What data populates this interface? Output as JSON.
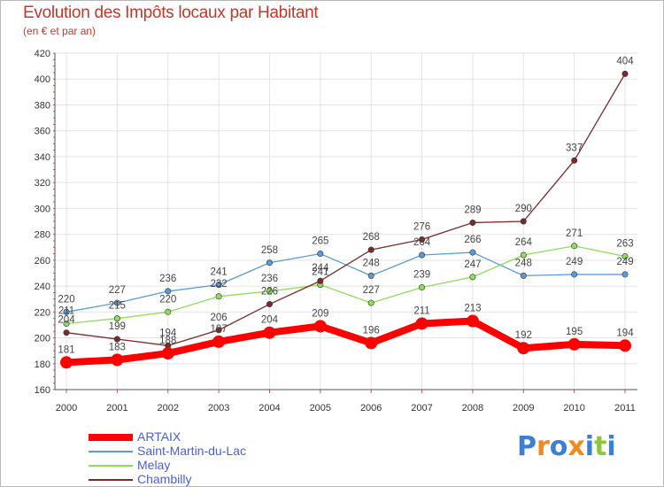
{
  "chart_data": {
    "type": "line",
    "title": "Evolution des Impôts locaux par Habitant",
    "subtitle": "(en € et par an)",
    "xlabel": "",
    "ylabel": "",
    "categories": [
      "2000",
      "2001",
      "2002",
      "2003",
      "2004",
      "2005",
      "2006",
      "2007",
      "2008",
      "2009",
      "2010",
      "2011"
    ],
    "ylim": [
      160,
      420
    ],
    "yticks": [
      160,
      180,
      200,
      220,
      240,
      260,
      280,
      300,
      320,
      340,
      360,
      380,
      400,
      420
    ],
    "grid": true,
    "legend_position": "bottom-left",
    "series": [
      {
        "name": "ARTAIX",
        "color": "#ff0000",
        "values": [
          181,
          183,
          188,
          197,
          204,
          209,
          196,
          211,
          213,
          192,
          195,
          194
        ],
        "labels": [
          "181",
          "183",
          "188",
          "197",
          "204",
          "209",
          "196",
          "211",
          "213",
          "192",
          "195",
          "194"
        ]
      },
      {
        "name": "Saint-Martin-du-Lac",
        "color": "#5b9bd5",
        "values": [
          220,
          227,
          236,
          241,
          258,
          265,
          248,
          264,
          266,
          248,
          249,
          249
        ],
        "labels": [
          "220",
          "227",
          "236",
          "241",
          "258",
          "265",
          "248",
          "264",
          "266",
          "248",
          "249",
          "249"
        ]
      },
      {
        "name": "Melay",
        "color": "#8fdc5a",
        "values": [
          211,
          215,
          220,
          232,
          236,
          241,
          227,
          239,
          247,
          264,
          271,
          263
        ],
        "labels": [
          "211",
          "215",
          "220",
          "232",
          "236",
          "241",
          "227",
          "239",
          "247",
          "264",
          "271",
          "263"
        ]
      },
      {
        "name": "Chambilly",
        "color": "#7b2a2a",
        "values": [
          204,
          199,
          194,
          206,
          226,
          244,
          268,
          276,
          289,
          290,
          337,
          404
        ],
        "labels": [
          "204",
          "199",
          "194",
          "206",
          "226",
          "244",
          "268",
          "276",
          "289",
          "290",
          "337",
          "404"
        ]
      }
    ]
  },
  "logo": {
    "text": "Proxiti",
    "letters": [
      "P",
      "r",
      "o",
      "x",
      "i",
      "t",
      "i"
    ],
    "colors": [
      "#3b7fd6",
      "#f08a1c",
      "#3b7fd6",
      "#f08a1c",
      "#3b7fd6",
      "#8cc63f",
      "#3b7fd6"
    ]
  }
}
